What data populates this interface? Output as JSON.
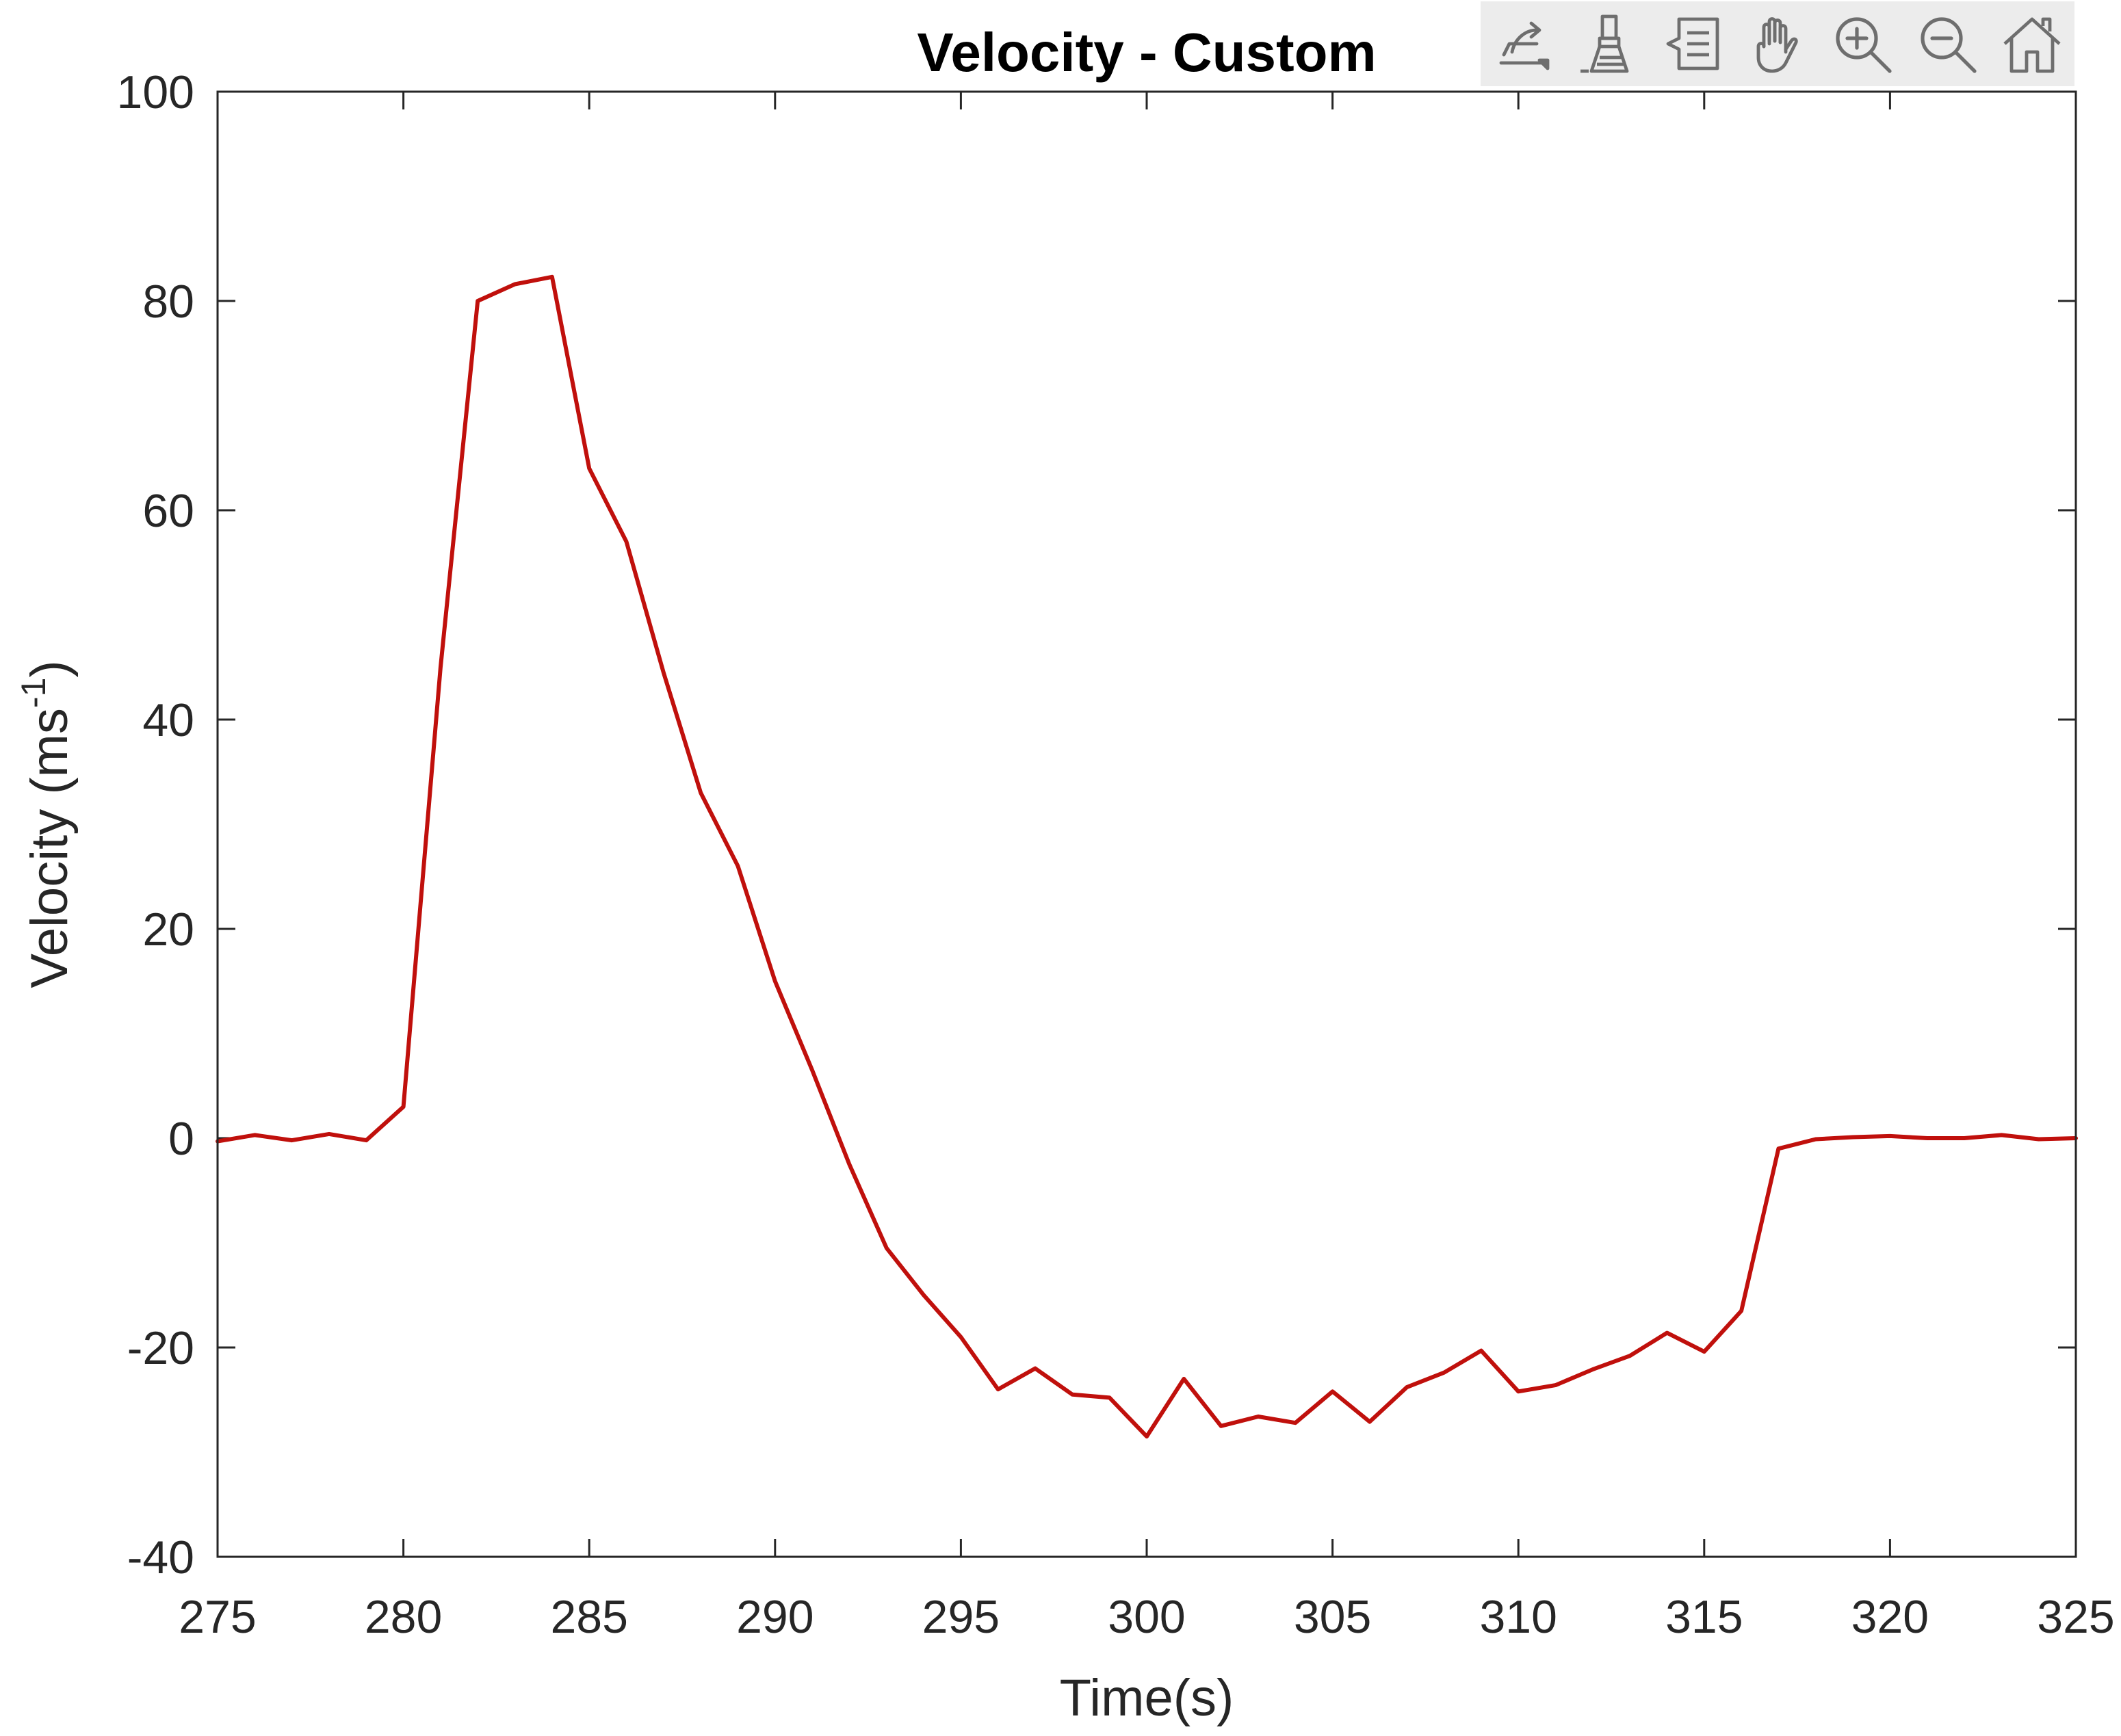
{
  "toolbar": {
    "tools": [
      {
        "name": "export-icon"
      },
      {
        "name": "brush-icon"
      },
      {
        "name": "datatip-icon"
      },
      {
        "name": "pan-hand-icon"
      },
      {
        "name": "zoom-in-icon"
      },
      {
        "name": "zoom-out-icon"
      },
      {
        "name": "home-icon"
      }
    ]
  },
  "chart_data": {
    "type": "line",
    "title": "Velocity - Custom",
    "xlabel": "Time(s)",
    "ylabel_main": "Velocity (ms",
    "ylabel_sup": "-1",
    "ylabel_close": ")",
    "xlim": [
      275,
      325
    ],
    "ylim": [
      -40,
      100
    ],
    "xticks": [
      275,
      280,
      285,
      290,
      295,
      300,
      305,
      310,
      315,
      320,
      325
    ],
    "xtick_labels": [
      "275",
      "280",
      "285",
      "290",
      "295",
      "300",
      "305",
      "310",
      "315",
      "320",
      "325"
    ],
    "yticks": [
      -40,
      -20,
      0,
      20,
      40,
      60,
      80,
      100
    ],
    "ytick_labels": [
      "-40",
      "-20",
      "0",
      "20",
      "40",
      "60",
      "80",
      "100"
    ],
    "grid": false,
    "line_color": "#c0100c",
    "series": [
      {
        "name": "Velocity",
        "x": [
          275,
          276,
          277,
          278,
          279,
          280,
          281,
          282,
          283,
          284,
          285,
          286,
          287,
          288,
          289,
          290,
          291,
          292,
          293,
          294,
          295,
          296,
          297,
          298,
          299,
          300,
          301,
          302,
          303,
          304,
          305,
          306,
          307,
          308,
          309,
          310,
          311,
          312,
          313,
          314,
          315,
          316,
          317,
          318,
          319,
          320,
          321,
          322,
          323,
          324,
          325
        ],
        "y": [
          -0.3,
          0.3,
          -0.2,
          0.4,
          -0.2,
          3.0,
          45.0,
          80.0,
          81.6,
          82.3,
          64.0,
          57.0,
          44.5,
          33.0,
          26.0,
          15.0,
          6.5,
          -2.5,
          -10.5,
          -15.0,
          -19.0,
          -24.0,
          -22.0,
          -24.5,
          -24.8,
          -28.5,
          -23.0,
          -27.5,
          -26.6,
          -27.2,
          -24.2,
          -27.1,
          -23.8,
          -22.4,
          -20.3,
          -24.2,
          -23.6,
          -22.1,
          -20.8,
          -18.6,
          -20.4,
          -16.5,
          -1.0,
          -0.1,
          0.1,
          0.2,
          0.0,
          0.0,
          0.3,
          -0.1,
          0.0
        ]
      }
    ]
  }
}
